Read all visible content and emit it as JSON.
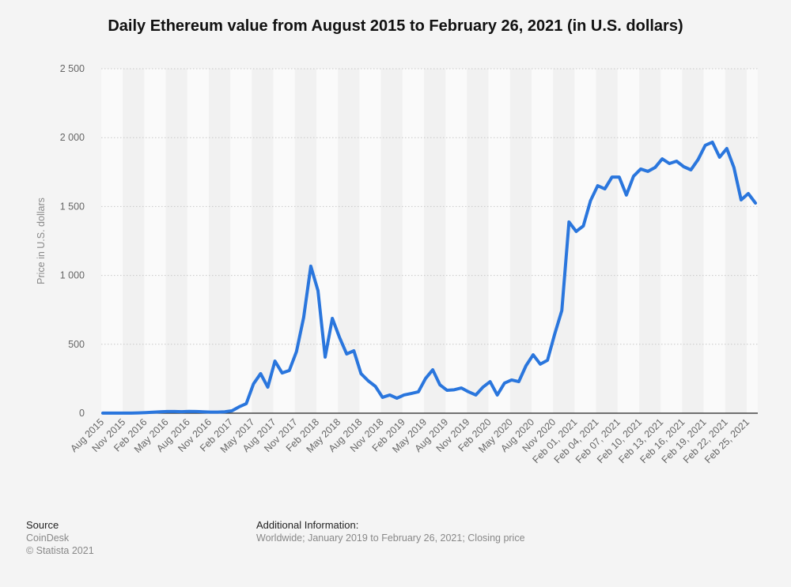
{
  "chart_data": {
    "type": "line",
    "title": "Daily Ethereum value from August 2015 to February 26, 2021 (in U.S. dollars)",
    "xlabel": "",
    "ylabel": "Price in U.S. dollars",
    "ylim": [
      0,
      2500
    ],
    "yticks": [
      0,
      500,
      1000,
      1500,
      2000,
      2500
    ],
    "ytick_labels": [
      "0",
      "500",
      "1 000",
      "1 500",
      "2 000",
      "2 500"
    ],
    "grid": true,
    "x_tick_labels": [
      "Aug 2015",
      "Nov 2015",
      "Feb 2016",
      "May 2016",
      "Aug 2016",
      "Nov 2016",
      "Feb 2017",
      "May 2017",
      "Aug 2017",
      "Nov 2017",
      "Feb 2018",
      "May 2018",
      "Aug 2018",
      "Nov 2018",
      "Feb 2019",
      "May 2019",
      "Aug 2019",
      "Nov 2019",
      "Feb 2020",
      "May 2020",
      "Aug 2020",
      "Nov 2020",
      "Feb 01, 2021",
      "Feb 04, 2021",
      "Feb 07, 2021",
      "Feb 10, 2021",
      "Feb 13, 2021",
      "Feb 16, 2021",
      "Feb 19, 2021",
      "Feb 22, 2021",
      "Feb 25, 2021"
    ],
    "points_per_tick": 3,
    "series": [
      {
        "name": "Ethereum price",
        "color": "#2a76dd",
        "values": [
          1,
          1,
          1,
          1,
          1,
          2,
          4,
          7,
          10,
          12,
          12,
          11,
          13,
          12,
          10,
          8,
          8,
          10,
          17,
          46,
          69,
          212,
          287,
          189,
          378,
          292,
          310,
          447,
          694,
          1067,
          889,
          407,
          688,
          550,
          430,
          453,
          287,
          235,
          195,
          115,
          132,
          109,
          132,
          143,
          155,
          252,
          315,
          206,
          166,
          170,
          183,
          155,
          132,
          189,
          229,
          132,
          218,
          241,
          229,
          344,
          424,
          356,
          384,
          573,
          745,
          1388,
          1319,
          1359,
          1542,
          1651,
          1628,
          1714,
          1714,
          1583,
          1720,
          1772,
          1755,
          1783,
          1846,
          1812,
          1829,
          1789,
          1766,
          1841,
          1944,
          1967,
          1858,
          1921,
          1783,
          1548,
          1594,
          1525
        ]
      }
    ]
  },
  "footer": {
    "source_heading": "Source",
    "source_name": "CoinDesk",
    "copyright": "© Statista 2021",
    "additional_heading": "Additional Information:",
    "additional_text": "Worldwide; January 2019 to February 26, 2021; Closing price"
  }
}
